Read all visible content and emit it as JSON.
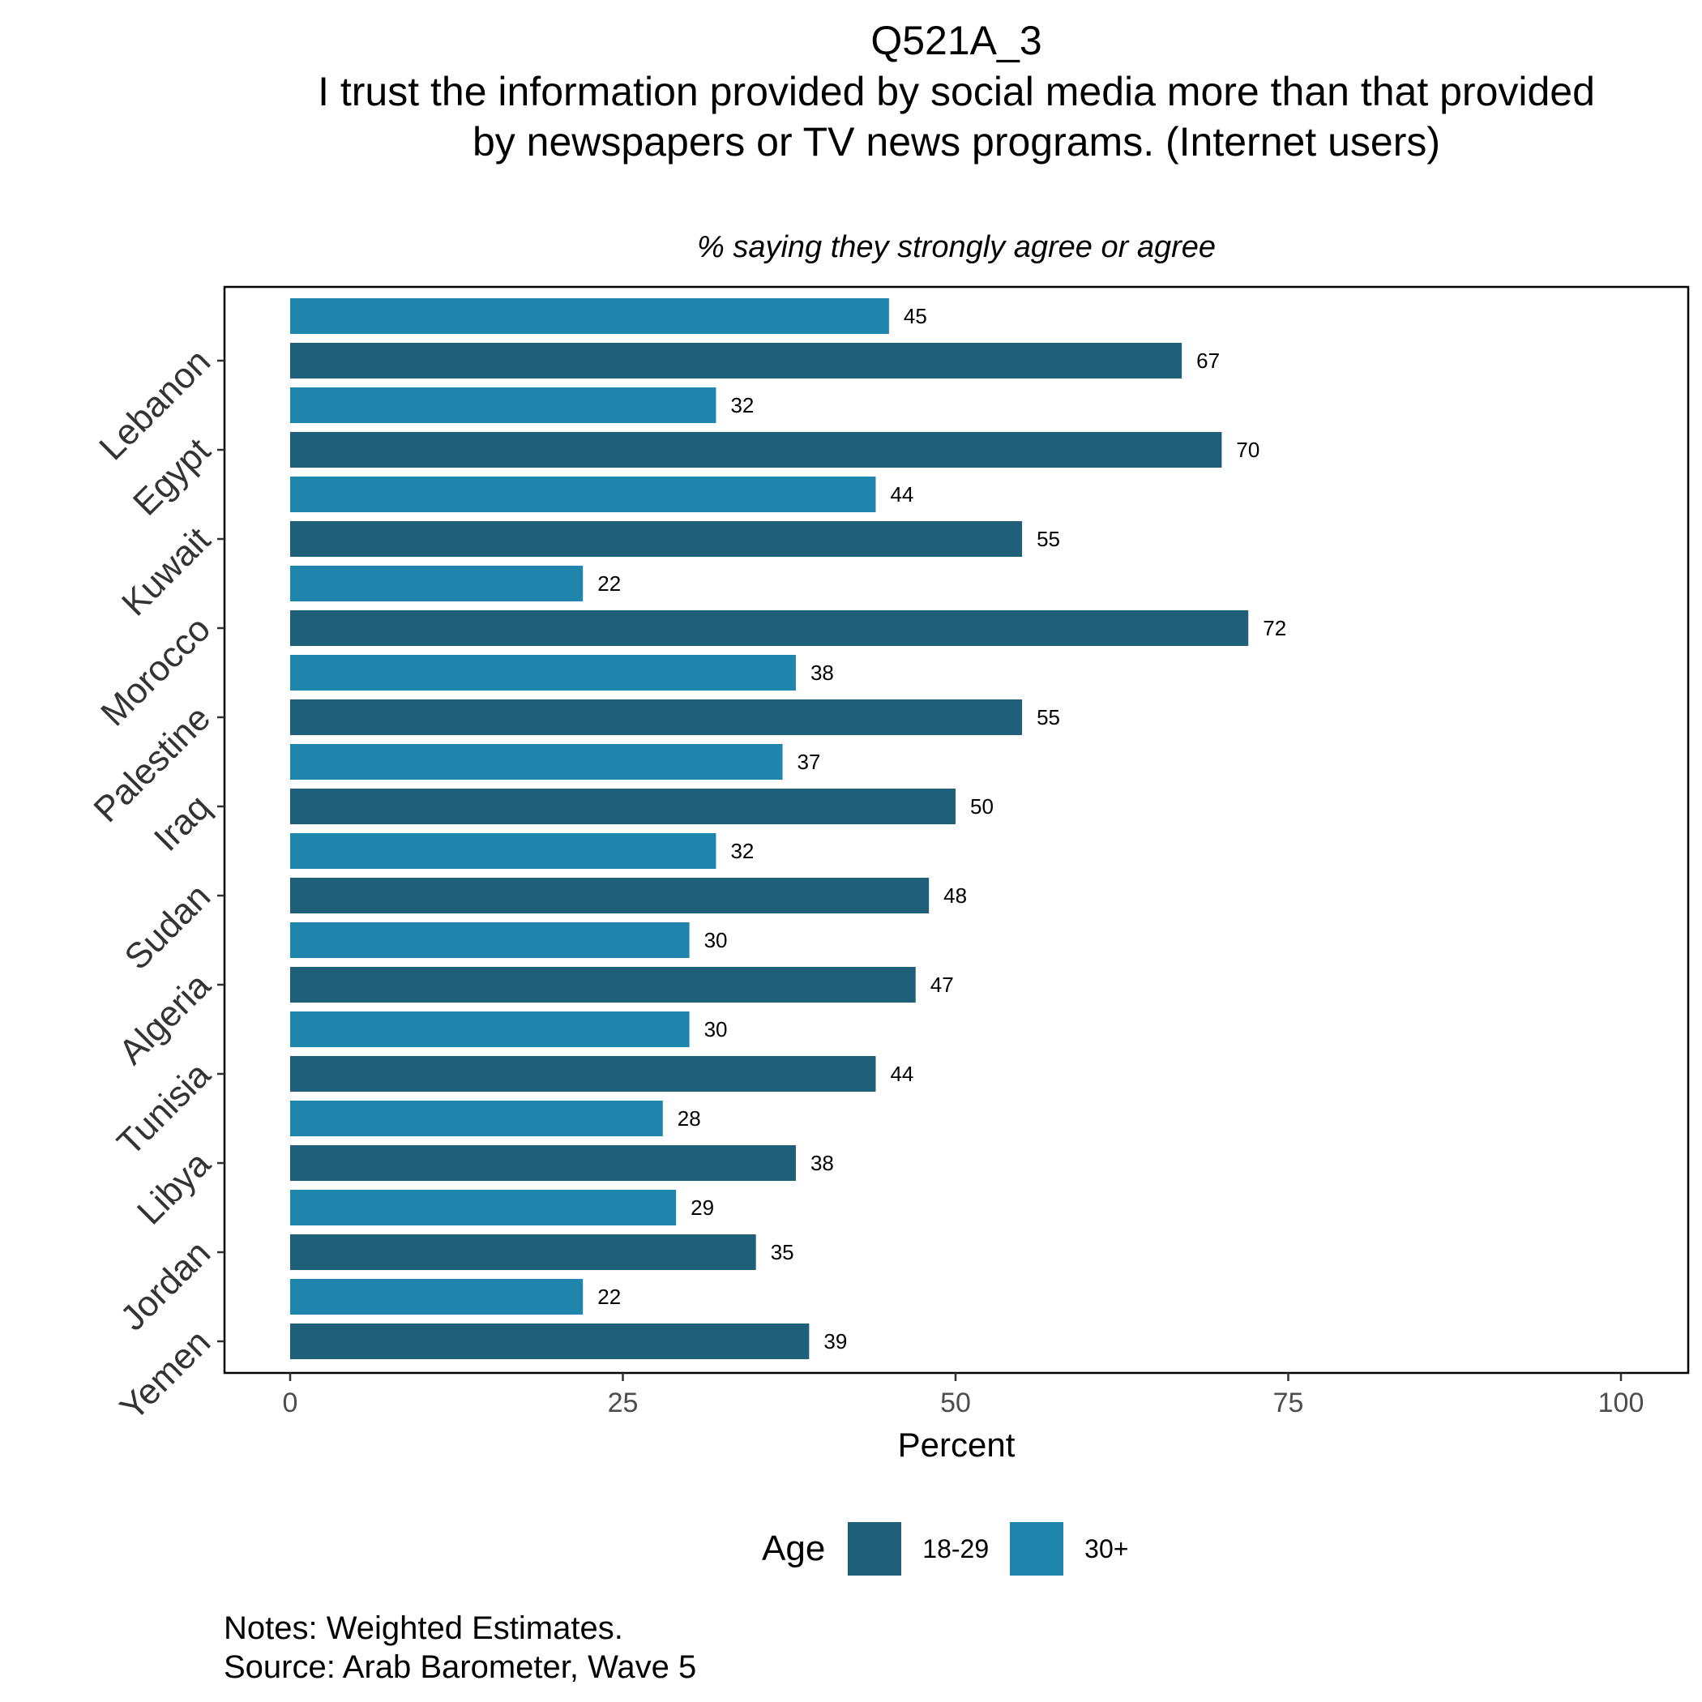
{
  "chart_data": {
    "type": "bar",
    "orientation": "horizontal",
    "title": "Q521A_3",
    "subtitle_main": "I trust the information provided by social media more than that provided by newspapers or TV news programs. (Internet users)",
    "subtitle": "% saying they strongly agree or agree",
    "xlabel": "Percent",
    "ylabel": "",
    "xlim": [
      0,
      100
    ],
    "xticks": [
      0,
      25,
      50,
      75,
      100
    ],
    "grid": false,
    "legend_position": "bottom",
    "legend_title": "Age",
    "categories": [
      "Lebanon",
      "Egypt",
      "Kuwait",
      "Morocco",
      "Palestine",
      "Iraq",
      "Sudan",
      "Algeria",
      "Tunisia",
      "Libya",
      "Jordan",
      "Yemen"
    ],
    "series": [
      {
        "name": "30+",
        "color": "#2085ad",
        "values": [
          45,
          32,
          44,
          22,
          38,
          37,
          32,
          30,
          30,
          28,
          29,
          22
        ]
      },
      {
        "name": "18-29",
        "color": "#1f5f7a",
        "values": [
          67,
          70,
          55,
          72,
          55,
          50,
          48,
          47,
          44,
          38,
          35,
          39
        ]
      }
    ]
  },
  "legend": {
    "title": "Age",
    "items": [
      {
        "label": "18-29",
        "color": "#1f5f7a"
      },
      {
        "label": "30+",
        "color": "#2085ad"
      }
    ]
  },
  "notes": {
    "line1": "Notes: Weighted Estimates.",
    "line2": "Source: Arab Barometer, Wave 5"
  }
}
